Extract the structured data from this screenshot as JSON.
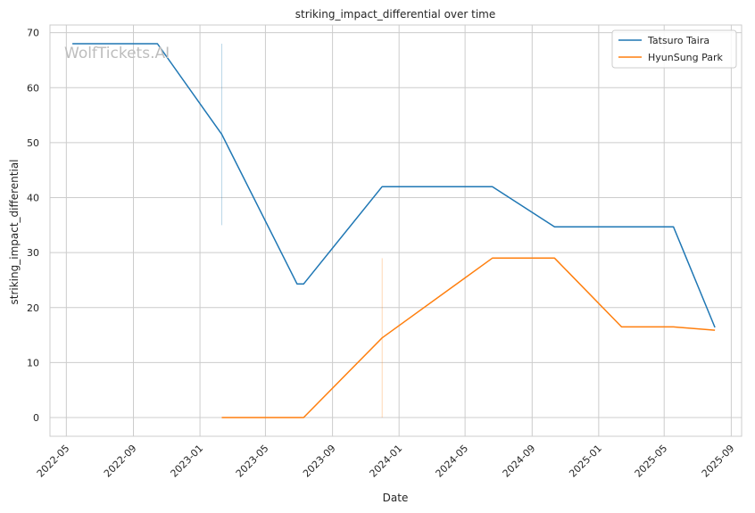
{
  "watermark": "WolfTickets.AI",
  "chart_data": {
    "type": "line",
    "title": "striking_impact_differential over time",
    "xlabel": "Date",
    "ylabel": "striking_impact_differential",
    "x_ticks": [
      "2022-05",
      "2022-09",
      "2023-01",
      "2023-05",
      "2023-09",
      "2024-01",
      "2024-05",
      "2024-09",
      "2025-01",
      "2025-05",
      "2025-09"
    ],
    "y_ticks": [
      0,
      10,
      20,
      30,
      40,
      50,
      60,
      70
    ],
    "xlim": [
      "2022-04-01",
      "2025-09-20"
    ],
    "ylim": [
      -3.4,
      71.4
    ],
    "grid": true,
    "legend_position": "top-right",
    "series": [
      {
        "name": "Tatsuro Taira",
        "color": "#1f77b4",
        "points": [
          [
            "2022-05-12",
            68
          ],
          [
            "2022-10-15",
            68
          ],
          [
            "2023-02-10",
            51.5
          ],
          [
            "2023-06-28",
            24.3
          ],
          [
            "2023-07-10",
            24.3
          ],
          [
            "2023-12-01",
            42
          ],
          [
            "2024-06-20",
            42
          ],
          [
            "2024-10-12",
            34.7
          ],
          [
            "2025-05-18",
            34.7
          ],
          [
            "2025-08-02",
            16.4
          ]
        ]
      },
      {
        "name": "HyunSung Park",
        "color": "#ff7f0e",
        "points": [
          [
            "2023-02-10",
            0
          ],
          [
            "2023-07-10",
            0
          ],
          [
            "2023-12-01",
            14.5
          ],
          [
            "2024-06-20",
            29
          ],
          [
            "2024-10-12",
            29
          ],
          [
            "2025-02-12",
            16.5
          ],
          [
            "2025-05-18",
            16.5
          ],
          [
            "2025-08-02",
            15.9
          ]
        ]
      }
    ],
    "markers": [
      {
        "color": "#1f77b4",
        "x": "2023-02-10",
        "y_range": [
          35,
          68
        ]
      },
      {
        "color": "#ff7f0e",
        "x": "2023-12-01",
        "y_range": [
          0,
          29
        ]
      }
    ]
  }
}
